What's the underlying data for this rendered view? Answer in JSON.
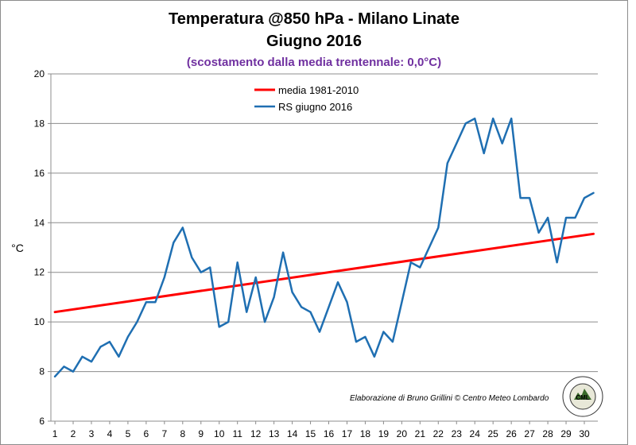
{
  "header": {
    "title_line1": "Temperatura @850 hPa - Milano Linate",
    "title_line2": "Giugno 2016",
    "subtitle": "(scostamento dalla media trentennale: 0,0°C)"
  },
  "credit": {
    "text": "Elaborazione di Bruno Grillini  ©  Centro Meteo Lombardo",
    "logo_text": "CML",
    "logo_ring_text": "CENTRO METEO LOMBARDO"
  },
  "colors": {
    "media": "#ff0000",
    "rs": "#1f6fb2",
    "grid": "#8c8c8c",
    "subtitle": "#7030a0"
  },
  "chart_data": {
    "type": "line",
    "title": "Temperatura @850 hPa - Milano Linate",
    "subtitle": "Giugno 2016",
    "xlabel": "",
    "ylabel": "°C",
    "ylim": [
      6,
      20
    ],
    "yticks": [
      6,
      8,
      10,
      12,
      14,
      16,
      18,
      20
    ],
    "xticks": [
      1,
      2,
      3,
      4,
      5,
      6,
      7,
      8,
      9,
      10,
      11,
      12,
      13,
      14,
      15,
      16,
      17,
      18,
      19,
      20,
      21,
      22,
      23,
      24,
      25,
      26,
      27,
      28,
      29,
      30
    ],
    "xlim": [
      1,
      30.5
    ],
    "grid": "horizontal",
    "legend_position": "top-center",
    "series": [
      {
        "name": "media 1981-2010",
        "color": "#ff0000",
        "x": [
          1,
          30.5
        ],
        "values": [
          10.4,
          13.55
        ]
      },
      {
        "name": "RS giugno 2016",
        "color": "#1f6fb2",
        "x": [
          1,
          1.5,
          2,
          2.5,
          3,
          3.5,
          4,
          4.5,
          5,
          5.5,
          6,
          6.5,
          7,
          7.5,
          8,
          8.5,
          9,
          9.5,
          10,
          10.5,
          11,
          11.5,
          12,
          12.5,
          13,
          13.5,
          14,
          14.5,
          15,
          15.5,
          16,
          16.5,
          17,
          17.5,
          18,
          18.5,
          19,
          19.5,
          20,
          20.5,
          21,
          21.5,
          22,
          22.5,
          23,
          23.5,
          24,
          24.5,
          25,
          25.5,
          26,
          26.5,
          27,
          27.5,
          28,
          28.5,
          29,
          29.5,
          30,
          30.5
        ],
        "values": [
          7.8,
          8.2,
          8.0,
          8.6,
          8.4,
          9.0,
          9.2,
          8.6,
          9.4,
          10.0,
          10.8,
          10.8,
          11.8,
          13.2,
          13.8,
          12.6,
          12.0,
          12.2,
          9.8,
          10.0,
          12.4,
          10.4,
          11.8,
          10.0,
          11.0,
          12.8,
          11.2,
          10.6,
          10.4,
          9.6,
          10.6,
          11.6,
          10.8,
          9.2,
          9.4,
          8.6,
          9.6,
          9.2,
          10.8,
          12.4,
          12.2,
          13.0,
          13.8,
          16.4,
          17.2,
          18.0,
          18.2,
          16.8,
          18.2,
          17.2,
          18.2,
          15.0,
          15.0,
          13.6,
          14.2,
          12.4,
          14.2,
          14.2,
          15.0,
          15.2
        ]
      }
    ]
  }
}
